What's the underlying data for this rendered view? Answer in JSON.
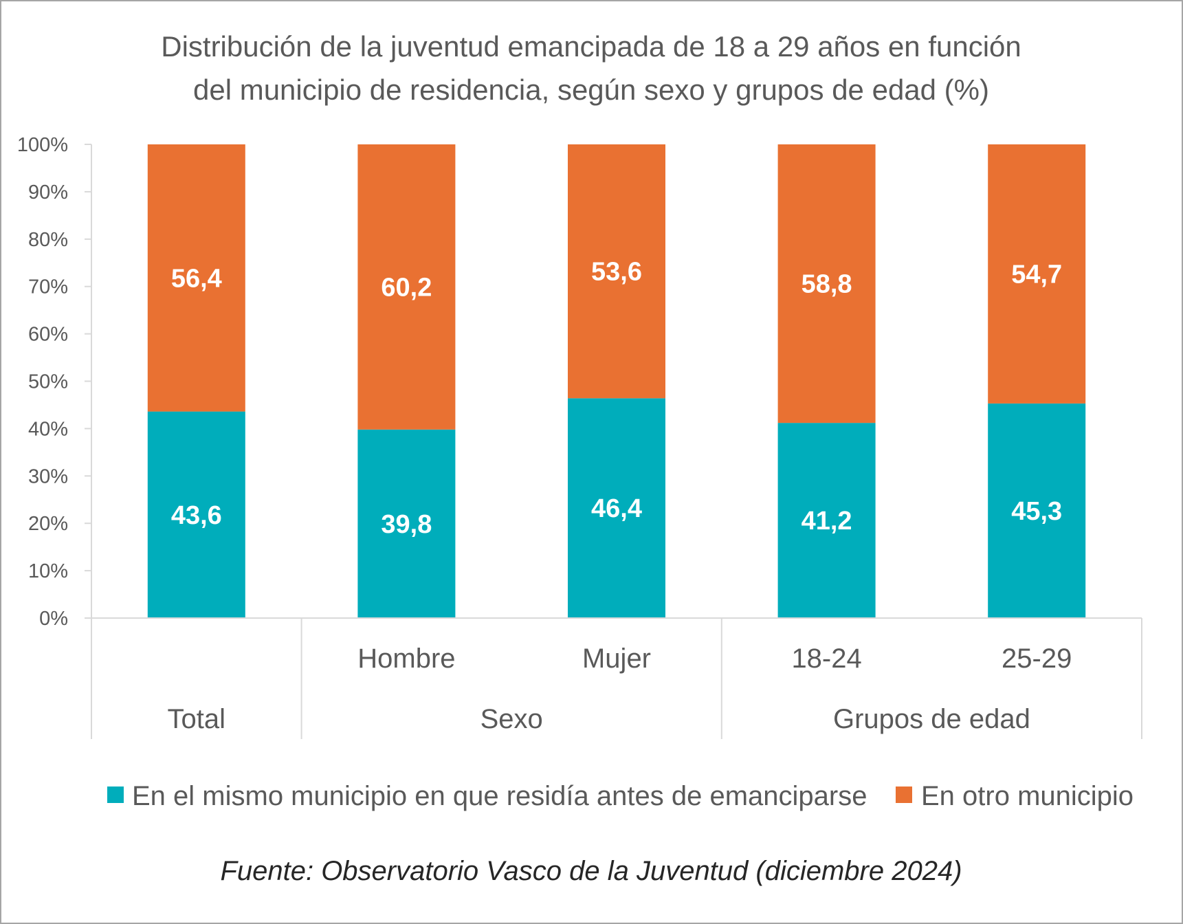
{
  "chart_data": {
    "type": "bar",
    "stacked": true,
    "title_lines": [
      "Distribución de la juventud emancipada de 18 a 29 años en función",
      "del municipio de residencia, según sexo y grupos de edad (%)"
    ],
    "categories": [
      "",
      "Hombre",
      "Mujer",
      "18-24",
      "25-29"
    ],
    "groups": [
      {
        "label": "Total",
        "span": [
          0,
          0
        ]
      },
      {
        "label": "Sexo",
        "span": [
          1,
          2
        ]
      },
      {
        "label": "Grupos de edad",
        "span": [
          3,
          4
        ]
      }
    ],
    "series": [
      {
        "name": "En el mismo municipio en que residía antes de emanciparse",
        "color": "#00adbb",
        "values": [
          43.6,
          39.8,
          46.4,
          41.2,
          45.3
        ],
        "labels": [
          "43,6",
          "39,8",
          "46,4",
          "41,2",
          "45,3"
        ]
      },
      {
        "name": "En otro municipio",
        "color": "#e97132",
        "values": [
          56.4,
          60.2,
          53.6,
          58.8,
          54.7
        ],
        "labels": [
          "56,4",
          "60,2",
          "53,6",
          "58,8",
          "54,7"
        ]
      }
    ],
    "ylim": [
      0,
      100
    ],
    "yticks": [
      0,
      10,
      20,
      30,
      40,
      50,
      60,
      70,
      80,
      90,
      100
    ],
    "ytick_labels": [
      "0%",
      "10%",
      "20%",
      "30%",
      "40%",
      "50%",
      "60%",
      "70%",
      "80%",
      "90%",
      "100%"
    ],
    "legend_position": "bottom",
    "grid": false
  },
  "source": "Fuente: Observatorio Vasco de la Juventud (diciembre 2024)"
}
